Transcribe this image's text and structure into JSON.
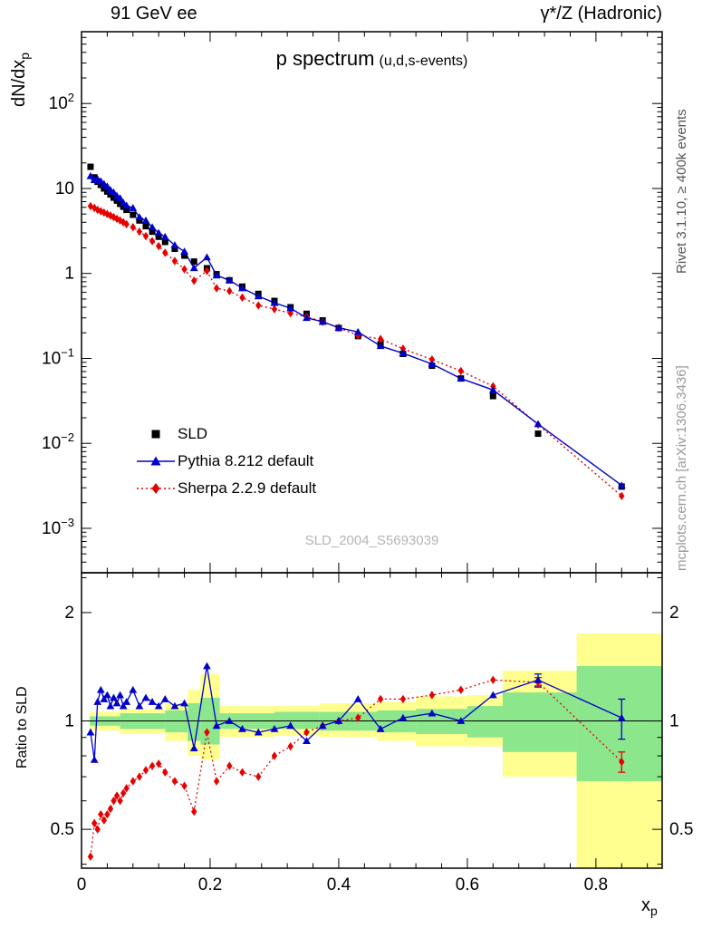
{
  "header": {
    "left": "91 GeV ee",
    "right": "γ*/Z (Hadronic)"
  },
  "side": {
    "top_right": "Rivet 3.1.10, ≥ 400k events",
    "bottom_right": "mcplots.cern.ch [arXiv:1306.3436]"
  },
  "watermark": "SLD_2004_S5693039",
  "chart_data": {
    "type": "line",
    "title": "p spectrum",
    "subtitle": "(u,d,s-events)",
    "ylabel": {
      "main": "dN/dx",
      "sub": "p"
    },
    "xlabel": {
      "main": "x",
      "sub": "p"
    },
    "ratio_label": "Ratio to SLD",
    "x_range": [
      0,
      0.903
    ],
    "x_ticks": {
      "major": [
        0,
        0.2,
        0.4,
        0.6,
        0.8
      ],
      "labels": [
        "0",
        "0.2",
        "0.4",
        "0.6",
        "0.8"
      ],
      "minor_step": 0.04
    },
    "main_y": {
      "scale": "log",
      "range": [
        0.0003,
        700
      ],
      "decades": [
        2,
        1,
        0,
        -1,
        -2,
        -3
      ]
    },
    "ratio_y": {
      "scale": "log",
      "range": [
        0.39,
        2.58
      ],
      "ticks": [
        2,
        1,
        0.5
      ],
      "tick_labels": [
        "2",
        "1",
        "0.5"
      ],
      "minor": [
        0.4,
        0.6,
        0.7,
        0.8,
        0.9,
        2.5
      ]
    },
    "x": [
      0.014,
      0.02,
      0.025,
      0.03,
      0.035,
      0.04,
      0.045,
      0.05,
      0.055,
      0.06,
      0.065,
      0.07,
      0.08,
      0.09,
      0.1,
      0.11,
      0.12,
      0.13,
      0.145,
      0.16,
      0.175,
      0.195,
      0.21,
      0.23,
      0.25,
      0.275,
      0.3,
      0.325,
      0.35,
      0.375,
      0.4,
      0.43,
      0.465,
      0.5,
      0.545,
      0.59,
      0.64,
      0.71,
      0.84
    ],
    "series": [
      {
        "name": "SLD",
        "color": "#000000",
        "marker": "square",
        "line": "none",
        "values": [
          18,
          13.5,
          12,
          11,
          10,
          9.2,
          8.5,
          7.8,
          7.2,
          6.6,
          6.1,
          5.6,
          4.9,
          4.2,
          3.6,
          3.1,
          2.7,
          2.35,
          1.95,
          1.62,
          1.38,
          1.15,
          0.98,
          0.83,
          0.7,
          0.575,
          0.475,
          0.4,
          0.335,
          0.28,
          0.228,
          0.183,
          0.147,
          0.113,
          0.082,
          0.058,
          0.036,
          0.013,
          0.0031
        ]
      },
      {
        "name": "Pythia 8.212 default",
        "color": "#0000cc",
        "marker": "triangle",
        "line": "solid",
        "values": [
          14,
          12.6,
          12.9,
          12.2,
          11.3,
          10.6,
          9.6,
          9.0,
          8.2,
          7.7,
          6.8,
          6.3,
          5.9,
          4.6,
          4.2,
          3.5,
          3.0,
          2.7,
          2.15,
          1.81,
          1.16,
          1.55,
          0.95,
          0.83,
          0.67,
          0.54,
          0.45,
          0.39,
          0.3,
          0.27,
          0.23,
          0.205,
          0.14,
          0.115,
          0.086,
          0.058,
          0.0425,
          0.0169,
          0.0032
        ]
      },
      {
        "name": "Sherpa 2.2.9 default",
        "color": "#e60000",
        "marker": "diamond",
        "line": "dotted",
        "values": [
          6.2,
          5.9,
          5.6,
          5.4,
          5.2,
          5.0,
          4.8,
          4.6,
          4.4,
          4.2,
          4.0,
          3.8,
          3.5,
          3.1,
          2.75,
          2.4,
          2.1,
          1.75,
          1.4,
          1.12,
          0.82,
          1.07,
          0.67,
          0.62,
          0.52,
          0.42,
          0.38,
          0.34,
          0.31,
          0.27,
          0.228,
          0.187,
          0.169,
          0.13,
          0.097,
          0.071,
          0.047,
          0.0166,
          0.0024
        ]
      }
    ],
    "ratio": {
      "reference": 1,
      "pythia": [
        0.93,
        0.78,
        1.13,
        1.22,
        1.15,
        1.18,
        1.1,
        1.16,
        1.12,
        1.18,
        1.1,
        1.13,
        1.22,
        1.1,
        1.16,
        1.13,
        1.1,
        1.15,
        1.1,
        1.12,
        0.84,
        1.42,
        0.97,
        1.0,
        0.95,
        0.93,
        0.95,
        0.97,
        0.88,
        0.97,
        1.0,
        1.15,
        0.95,
        1.02,
        1.05,
        1.0,
        1.18,
        1.3,
        1.02
      ],
      "sherpa": [
        0.42,
        0.52,
        0.5,
        0.55,
        0.53,
        0.55,
        0.57,
        0.6,
        0.62,
        0.6,
        0.63,
        0.65,
        0.68,
        0.7,
        0.73,
        0.75,
        0.76,
        0.72,
        0.68,
        0.66,
        0.56,
        0.93,
        0.68,
        0.75,
        0.72,
        0.7,
        0.8,
        0.85,
        0.93,
        0.97,
        1.0,
        1.02,
        1.15,
        1.15,
        1.18,
        1.22,
        1.3,
        1.28,
        0.77
      ],
      "pythia_errs": {
        "37": 0.05,
        "38": 0.13
      },
      "sherpa_errs": {
        "37": 0.04,
        "38": 0.05
      },
      "bands": {
        "yellow_color": "#ffff8f",
        "green_color": "#8ce68c",
        "yellow": [
          [
            0.013,
            0.06,
            0.94,
            1.06
          ],
          [
            0.06,
            0.13,
            0.92,
            1.08
          ],
          [
            0.13,
            0.165,
            0.88,
            1.12
          ],
          [
            0.165,
            0.185,
            0.8,
            1.22
          ],
          [
            0.185,
            0.215,
            0.78,
            1.35
          ],
          [
            0.215,
            0.3,
            0.9,
            1.1
          ],
          [
            0.3,
            0.37,
            0.91,
            1.1
          ],
          [
            0.37,
            0.46,
            0.9,
            1.12
          ],
          [
            0.46,
            0.52,
            0.88,
            1.13
          ],
          [
            0.52,
            0.6,
            0.85,
            1.17
          ],
          [
            0.6,
            0.655,
            0.85,
            1.18
          ],
          [
            0.655,
            0.77,
            0.7,
            1.38
          ],
          [
            0.77,
            0.903,
            0.38,
            1.75
          ]
        ],
        "green": [
          [
            0.013,
            0.06,
            0.97,
            1.03
          ],
          [
            0.06,
            0.13,
            0.95,
            1.05
          ],
          [
            0.13,
            0.165,
            0.93,
            1.07
          ],
          [
            0.165,
            0.185,
            0.88,
            1.12
          ],
          [
            0.185,
            0.215,
            0.86,
            1.16
          ],
          [
            0.215,
            0.3,
            0.95,
            1.05
          ],
          [
            0.3,
            0.37,
            0.95,
            1.06
          ],
          [
            0.37,
            0.46,
            0.94,
            1.06
          ],
          [
            0.46,
            0.52,
            0.93,
            1.07
          ],
          [
            0.52,
            0.6,
            0.92,
            1.08
          ],
          [
            0.6,
            0.655,
            0.9,
            1.1
          ],
          [
            0.655,
            0.77,
            0.82,
            1.2
          ],
          [
            0.77,
            0.903,
            0.68,
            1.42
          ]
        ]
      }
    }
  }
}
